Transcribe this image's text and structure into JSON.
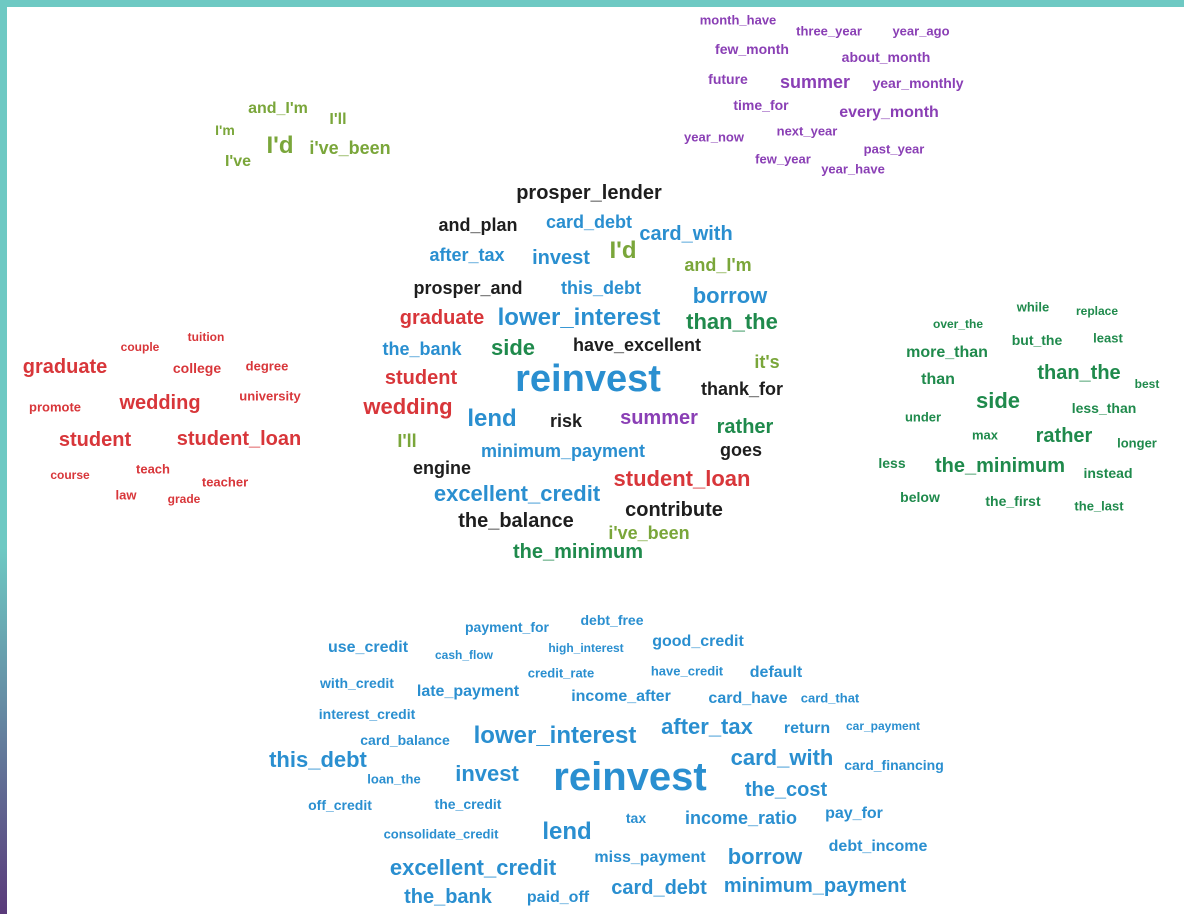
{
  "colors": {
    "purple": "#8a3fb5",
    "olive": "#7aa63a",
    "black": "#1e1e1e",
    "blue": "#2a8fd0",
    "red": "#d8363a",
    "green": "#1f8a4c"
  },
  "clusters": {
    "time": {
      "color": "purple",
      "words": [
        "month_have",
        "three_year",
        "year_ago",
        "few_month",
        "about_month",
        "future",
        "summer",
        "year_monthly",
        "time_for",
        "every_month",
        "year_now",
        "next_year",
        "past_year",
        "few_year",
        "year_have"
      ]
    },
    "pronouns": {
      "color": "olive",
      "words": [
        "and_I'm",
        "I'll",
        "I'm",
        "I'd",
        "i've_been",
        "I've"
      ]
    },
    "education": {
      "color": "red",
      "words": [
        "couple",
        "tuition",
        "graduate",
        "college",
        "degree",
        "university",
        "promote",
        "wedding",
        "student",
        "student_loan",
        "course",
        "teach",
        "teacher",
        "law",
        "grade"
      ]
    },
    "comparison": {
      "color": "green",
      "words": [
        "while",
        "replace",
        "over_the",
        "but_the",
        "least",
        "more_than",
        "than",
        "than_the",
        "best",
        "side",
        "less_than",
        "under",
        "max",
        "rather",
        "longer",
        "less",
        "the_minimum",
        "instead",
        "below",
        "the_first",
        "the_last"
      ]
    },
    "credit": {
      "color": "blue",
      "words": [
        "debt_free",
        "payment_for",
        "high_interest",
        "good_credit",
        "use_credit",
        "cash_flow",
        "credit_rate",
        "have_credit",
        "default",
        "with_credit",
        "late_payment",
        "income_after",
        "card_have",
        "card_that",
        "interest_credit",
        "after_tax",
        "return",
        "car_payment",
        "card_balance",
        "lower_interest",
        "this_debt",
        "card_with",
        "loan_the",
        "invest",
        "reinvest",
        "card_financing",
        "the_cost",
        "off_credit",
        "the_credit",
        "pay_for",
        "tax",
        "income_ratio",
        "consolidate_credit",
        "lend",
        "debt_income",
        "miss_payment",
        "borrow",
        "excellent_credit",
        "the_bank",
        "paid_off",
        "card_debt",
        "minimum_payment"
      ]
    },
    "mixed": {
      "words": [
        "prosper_lender",
        "and_plan",
        "card_debt",
        "card_with",
        "after_tax",
        "invest",
        "I'd",
        "and_I'm",
        "prosper_and",
        "this_debt",
        "borrow",
        "graduate",
        "lower_interest",
        "than_the",
        "the_bank",
        "side",
        "have_excellent",
        "it's",
        "student",
        "reinvest",
        "thank_for",
        "wedding",
        "lend",
        "risk",
        "summer",
        "rather",
        "I'll",
        "minimum_payment",
        "goes",
        "engine",
        "student_loan",
        "excellent_credit",
        "contribute",
        "the_balance",
        "i've_been",
        "the_minimum"
      ]
    }
  }
}
